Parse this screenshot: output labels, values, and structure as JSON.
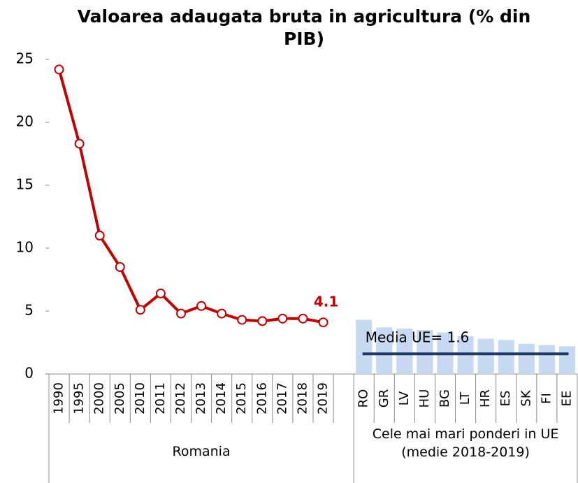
{
  "chart_data": {
    "type": "combo",
    "title": "Valoarea adaugata bruta in agricultura (% din PIB)",
    "categories": [
      "1990",
      "1995",
      "2000",
      "2005",
      "2010",
      "2011",
      "2012",
      "2013",
      "2014",
      "2015",
      "2016",
      "2017",
      "2018",
      "2019",
      null,
      "RO",
      "GR",
      "LV",
      "HU",
      "BG",
      "LT",
      "HR",
      "ES",
      "SK",
      "FI",
      "EE"
    ],
    "groups": [
      "Romania",
      "Cele mai mari ponderi in UE (medie 2018-2019)"
    ],
    "series": [
      {
        "type": "line",
        "color": "#c00000",
        "values": [
          24.2,
          18.3,
          11.0,
          8.5,
          5.1,
          6.4,
          4.8,
          5.4,
          4.8,
          4.3,
          4.2,
          4.4,
          4.4,
          4.1,
          null,
          null,
          null,
          null,
          null,
          null,
          null,
          null,
          null,
          null,
          null,
          null
        ],
        "value_labels": [
          null,
          null,
          null,
          null,
          null,
          null,
          null,
          null,
          null,
          null,
          null,
          null,
          null,
          "4.1",
          null,
          null,
          null,
          null,
          null,
          null,
          null,
          null,
          null,
          null,
          null,
          null
        ]
      },
      {
        "type": "bar",
        "color": "#c6d9f0",
        "values": [
          null,
          null,
          null,
          null,
          null,
          null,
          null,
          null,
          null,
          null,
          null,
          null,
          null,
          null,
          null,
          4.3,
          3.7,
          3.6,
          3.5,
          3.3,
          3.0,
          2.8,
          2.7,
          2.4,
          2.3,
          2.2
        ]
      }
    ],
    "reference_line": {
      "value": 1.6,
      "label": "Media UE= 1.6",
      "color": "#1f3864"
    },
    "ylim": [
      0,
      25
    ],
    "yticks": [
      0,
      5,
      10,
      15,
      20,
      25
    ],
    "grid": false
  }
}
